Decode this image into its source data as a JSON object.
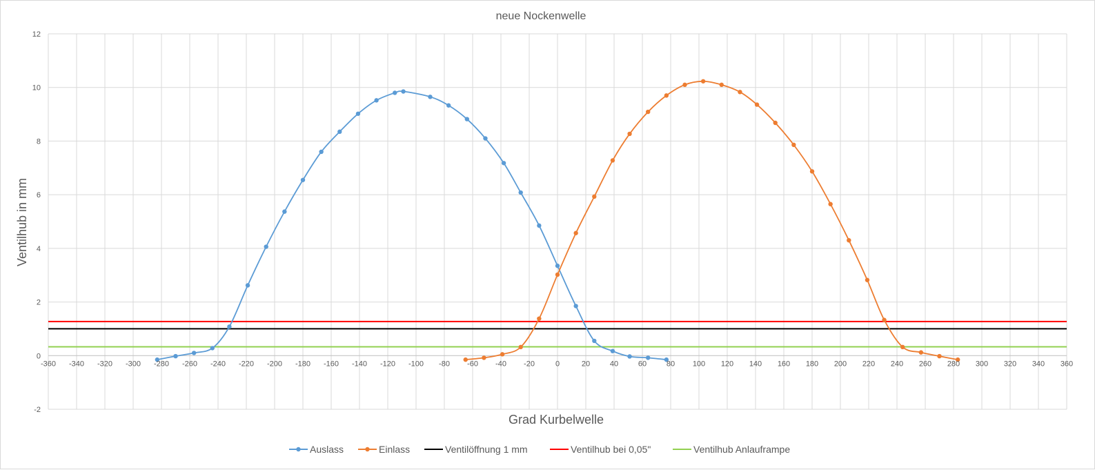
{
  "chart_data": {
    "type": "line",
    "title": "neue Nockenwelle",
    "xlabel": "Grad Kurbelwelle",
    "ylabel": "Ventilhub in mm",
    "xlim": [
      -360,
      360
    ],
    "ylim": [
      -2,
      12
    ],
    "x_ticks": [
      -360,
      -340,
      -320,
      -300,
      -280,
      -260,
      -240,
      -220,
      -200,
      -180,
      -160,
      -140,
      -120,
      -100,
      -80,
      -60,
      -40,
      -20,
      0,
      20,
      40,
      60,
      80,
      100,
      120,
      140,
      160,
      180,
      200,
      220,
      240,
      260,
      280,
      300,
      320,
      340,
      360
    ],
    "y_ticks": [
      -2,
      0,
      2,
      4,
      6,
      8,
      10,
      12
    ],
    "grid": true,
    "legend_position": "bottom",
    "series": [
      {
        "name": "Auslass",
        "color": "#5b9bd5",
        "style": "smooth-line-markers",
        "x": [
          -283,
          -270,
          -257,
          -244,
          -232,
          -219,
          -206,
          -193,
          -180,
          -167,
          -154,
          -141,
          -128,
          -115,
          -109,
          -90,
          -77,
          -64,
          -51,
          -38,
          -26,
          -13,
          0,
          13,
          26,
          39,
          51,
          64,
          77
        ],
        "y": [
          -0.15,
          -0.02,
          0.1,
          0.28,
          1.08,
          2.62,
          4.06,
          5.37,
          6.55,
          7.6,
          8.35,
          9.02,
          9.52,
          9.8,
          9.85,
          9.65,
          9.33,
          8.82,
          8.1,
          7.18,
          6.08,
          4.85,
          3.35,
          1.85,
          0.55,
          0.17,
          -0.03,
          -0.08,
          -0.15
        ]
      },
      {
        "name": "Einlass",
        "color": "#ed7d31",
        "style": "smooth-line-markers",
        "x": [
          -65,
          -52,
          -39,
          -26,
          -13,
          0,
          13,
          26,
          39,
          51,
          64,
          77,
          90,
          103,
          116,
          129,
          141,
          154,
          167,
          180,
          193,
          206,
          219,
          231,
          244,
          257,
          270,
          283
        ],
        "y": [
          -0.15,
          -0.08,
          0.05,
          0.32,
          1.38,
          3.02,
          4.57,
          5.93,
          7.28,
          8.27,
          9.09,
          9.7,
          10.1,
          10.23,
          10.1,
          9.83,
          9.36,
          8.68,
          7.86,
          6.87,
          5.65,
          4.3,
          2.82,
          1.33,
          0.32,
          0.12,
          -0.02,
          -0.15
        ]
      },
      {
        "name": "Ventilöffnung 1 mm",
        "color": "#000000",
        "style": "hline",
        "y": 1
      },
      {
        "name": "Ventilhub bei 0,05\"",
        "color": "#ff0000",
        "style": "hline",
        "y": 1.27
      },
      {
        "name": "Ventilhub Anlauframpe",
        "color": "#92d050",
        "style": "hline",
        "y": 0.33
      }
    ]
  }
}
